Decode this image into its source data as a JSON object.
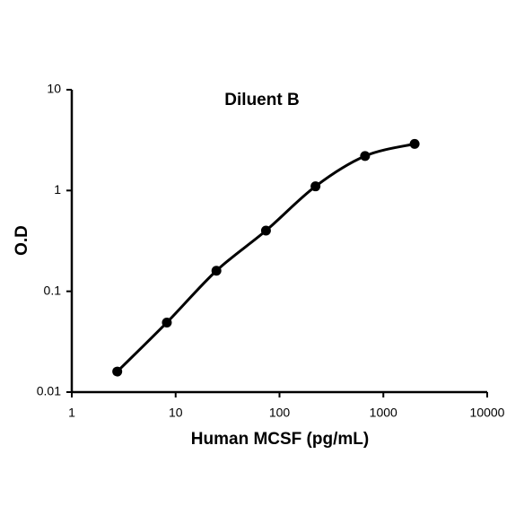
{
  "chart_data": {
    "type": "line",
    "title": "Diluent B",
    "xlabel": "Human MCSF (pg/mL)",
    "ylabel": "O.D",
    "xscale": "log",
    "yscale": "log",
    "x": [
      2.74,
      8.23,
      24.69,
      74.07,
      222.2,
      666.7,
      2000
    ],
    "series": [
      {
        "color": "#000000",
        "values": [
          0.016,
          0.049,
          0.16,
          0.4,
          1.1,
          2.2,
          2.9
        ]
      }
    ],
    "xlim": [
      1,
      10000
    ],
    "xticks": [
      1,
      10,
      100,
      1000,
      10000
    ],
    "ylim": [
      0.01,
      10
    ],
    "yticks": [
      0.01,
      0.1,
      1,
      10
    ],
    "grid": false
  }
}
